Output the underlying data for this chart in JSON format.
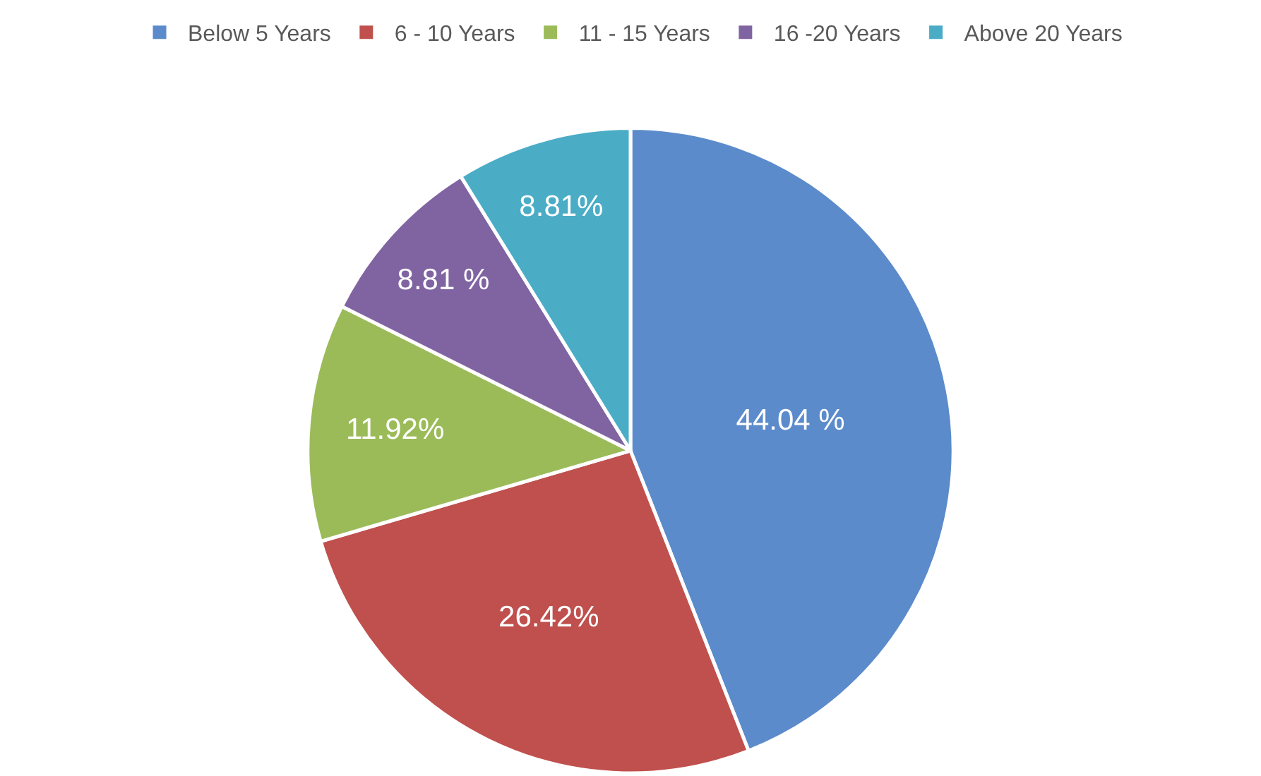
{
  "chart_data": {
    "type": "pie",
    "categories": [
      "Below 5 Years",
      "6 - 10 Years",
      "11 - 15 Years",
      "16 -20 Years",
      "Above 20 Years"
    ],
    "values": [
      44.04,
      26.42,
      11.92,
      8.81,
      8.81
    ],
    "value_labels": [
      "44.04 %",
      "26.42%",
      "11.92%",
      "8.81 %",
      "8.81%"
    ],
    "colors": [
      "#5b8bcb",
      "#c0504d",
      "#9bbb59",
      "#8064a2",
      "#4bacc6"
    ],
    "legend": "top"
  }
}
